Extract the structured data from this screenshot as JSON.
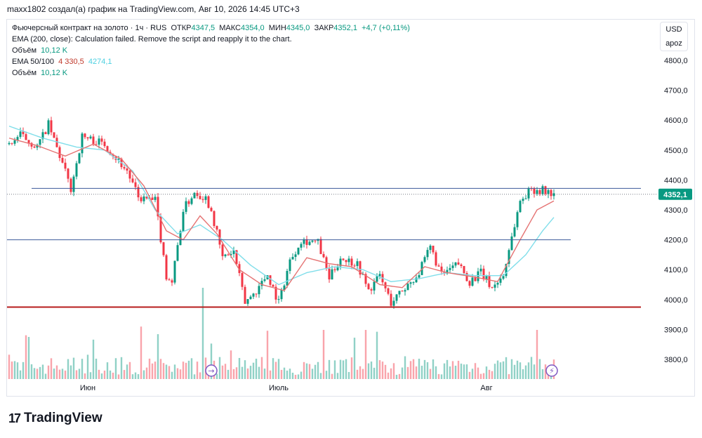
{
  "header": {
    "author_line": "maxx1802 создал(а) график на TradingView.com, Авг 10, 2026 14:45 UTC+3"
  },
  "legend": {
    "symbol_line": {
      "title": "Фьючерсный контракт на золото · 1ч · RUS",
      "open_label": "ОТКР",
      "open": "4347,5",
      "high_label": "МАКС",
      "high": "4354,0",
      "low_label": "МИН",
      "low": "4345,0",
      "close_label": "ЗАКР",
      "close": "4352,1",
      "change": "+4,7 (+0,11%)"
    },
    "ema200": "EMA (200, close): Calculation failed. Remove the script and reapply it to the chart.",
    "volume1_label": "Объём",
    "volume1_value": "10,12 K",
    "ema50_100_label": "EMA 50/100",
    "ema50_value": "4 330,5",
    "ema100_value": "4274,1",
    "volume2_label": "Объём",
    "volume2_value": "10,12 K"
  },
  "unit_box": {
    "currency": "USD",
    "scale": "apoz"
  },
  "footer": {
    "logo_text": "TradingView",
    "logo_mark": "17"
  },
  "colors": {
    "up": "#089981",
    "down": "#f23645",
    "ema50": "#e57373",
    "ema100": "#80deea",
    "resistance": "#3c5a99",
    "support": "#b71c1c",
    "last_price_bg": "#089981"
  },
  "chart_data": {
    "type": "candlestick",
    "interval": "1h",
    "ylim": [
      3740,
      4860
    ],
    "y_ticks": [
      3800,
      3900,
      4000,
      4100,
      4200,
      4300,
      4400,
      4500,
      4600,
      4700,
      4800
    ],
    "y_tick_labels": [
      "3800,0",
      "3900,0",
      "4000,0",
      "4100,0",
      "4200,0",
      "4300,0",
      "4400,0",
      "4500,0",
      "4600,0",
      "4700,0",
      "4800,0"
    ],
    "x_labels": [
      {
        "label": "Июн",
        "bar": 28
      },
      {
        "label": "Июль",
        "bar": 96
      },
      {
        "label": "Авг",
        "bar": 170
      }
    ],
    "bars": 195,
    "last_price": 4352.1,
    "last_price_label": "4352,1",
    "hlines": [
      {
        "name": "resistance",
        "value": 4372,
        "from_bar": 8,
        "to_bar": 225
      },
      {
        "name": "mid",
        "value": 4200,
        "from_bar": 0,
        "to_bar": 200
      },
      {
        "name": "support",
        "value": 3975,
        "from_bar": 0,
        "to_bar": 225
      }
    ],
    "anchors": [
      [
        0,
        4520
      ],
      [
        4,
        4550
      ],
      [
        10,
        4510
      ],
      [
        14,
        4585
      ],
      [
        18,
        4480
      ],
      [
        22,
        4370
      ],
      [
        26,
        4545
      ],
      [
        34,
        4520
      ],
      [
        42,
        4430
      ],
      [
        46,
        4340
      ],
      [
        52,
        4330
      ],
      [
        56,
        4080
      ],
      [
        58,
        4060
      ],
      [
        62,
        4300
      ],
      [
        66,
        4360
      ],
      [
        70,
        4340
      ],
      [
        72,
        4300
      ],
      [
        76,
        4140
      ],
      [
        80,
        4160
      ],
      [
        84,
        3990
      ],
      [
        88,
        4030
      ],
      [
        92,
        4085
      ],
      [
        96,
        3990
      ],
      [
        100,
        4130
      ],
      [
        104,
        4200
      ],
      [
        110,
        4190
      ],
      [
        114,
        4070
      ],
      [
        118,
        4140
      ],
      [
        124,
        4120
      ],
      [
        128,
        4030
      ],
      [
        132,
        4080
      ],
      [
        136,
        3990
      ],
      [
        142,
        4050
      ],
      [
        146,
        4090
      ],
      [
        150,
        4175
      ],
      [
        154,
        4080
      ],
      [
        160,
        4120
      ],
      [
        164,
        4060
      ],
      [
        168,
        4090
      ],
      [
        172,
        4040
      ],
      [
        176,
        4080
      ],
      [
        178,
        4170
      ],
      [
        182,
        4330
      ],
      [
        186,
        4370
      ],
      [
        190,
        4365
      ],
      [
        194,
        4352
      ]
    ],
    "ema50_anchors": [
      [
        0,
        4540
      ],
      [
        10,
        4515
      ],
      [
        20,
        4480
      ],
      [
        30,
        4520
      ],
      [
        40,
        4470
      ],
      [
        48,
        4380
      ],
      [
        56,
        4230
      ],
      [
        62,
        4200
      ],
      [
        68,
        4280
      ],
      [
        74,
        4220
      ],
      [
        82,
        4100
      ],
      [
        90,
        4050
      ],
      [
        98,
        4030
      ],
      [
        106,
        4140
      ],
      [
        114,
        4120
      ],
      [
        122,
        4110
      ],
      [
        132,
        4050
      ],
      [
        140,
        4040
      ],
      [
        148,
        4110
      ],
      [
        156,
        4090
      ],
      [
        166,
        4075
      ],
      [
        174,
        4060
      ],
      [
        182,
        4200
      ],
      [
        188,
        4300
      ],
      [
        194,
        4330
      ]
    ],
    "ema100_anchors": [
      [
        0,
        4580
      ],
      [
        12,
        4540
      ],
      [
        24,
        4510
      ],
      [
        34,
        4500
      ],
      [
        44,
        4430
      ],
      [
        52,
        4300
      ],
      [
        60,
        4220
      ],
      [
        68,
        4250
      ],
      [
        76,
        4200
      ],
      [
        86,
        4115
      ],
      [
        96,
        4050
      ],
      [
        106,
        4090
      ],
      [
        116,
        4110
      ],
      [
        126,
        4100
      ],
      [
        136,
        4060
      ],
      [
        146,
        4070
      ],
      [
        156,
        4090
      ],
      [
        166,
        4080
      ],
      [
        176,
        4080
      ],
      [
        184,
        4150
      ],
      [
        190,
        4230
      ],
      [
        194,
        4275
      ]
    ]
  }
}
